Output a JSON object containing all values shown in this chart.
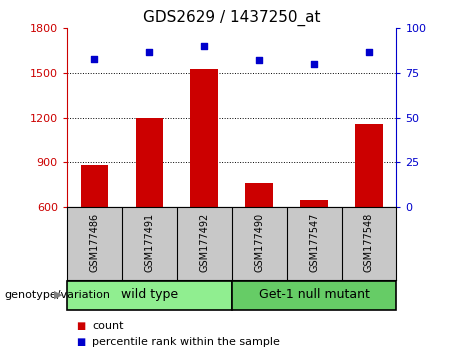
{
  "title": "GDS2629 / 1437250_at",
  "samples": [
    "GSM177486",
    "GSM177491",
    "GSM177492",
    "GSM177490",
    "GSM177547",
    "GSM177548"
  ],
  "counts": [
    880,
    1200,
    1530,
    760,
    650,
    1155
  ],
  "percentile_ranks": [
    83,
    87,
    90,
    82,
    80,
    87
  ],
  "ylim_left": [
    600,
    1800
  ],
  "ylim_right": [
    0,
    100
  ],
  "yticks_left": [
    600,
    900,
    1200,
    1500,
    1800
  ],
  "yticks_right": [
    0,
    25,
    50,
    75,
    100
  ],
  "bar_color": "#cc0000",
  "dot_color": "#0000cc",
  "bar_bottom": 600,
  "groups": [
    {
      "label": "wild type",
      "indices": [
        0,
        1,
        2
      ],
      "color": "#90ee90"
    },
    {
      "label": "Get-1 null mutant",
      "indices": [
        3,
        4,
        5
      ],
      "color": "#66cc66"
    }
  ],
  "genotype_label": "genotype/variation",
  "legend_count_label": "count",
  "legend_percentile_label": "percentile rank within the sample",
  "tick_label_color_left": "#cc0000",
  "tick_label_color_right": "#0000cc",
  "xlabel_area_color": "#c8c8c8",
  "title_fontsize": 11,
  "tick_fontsize": 8,
  "sample_label_fontsize": 7,
  "group_label_fontsize": 9,
  "legend_fontsize": 8,
  "genotype_fontsize": 8
}
